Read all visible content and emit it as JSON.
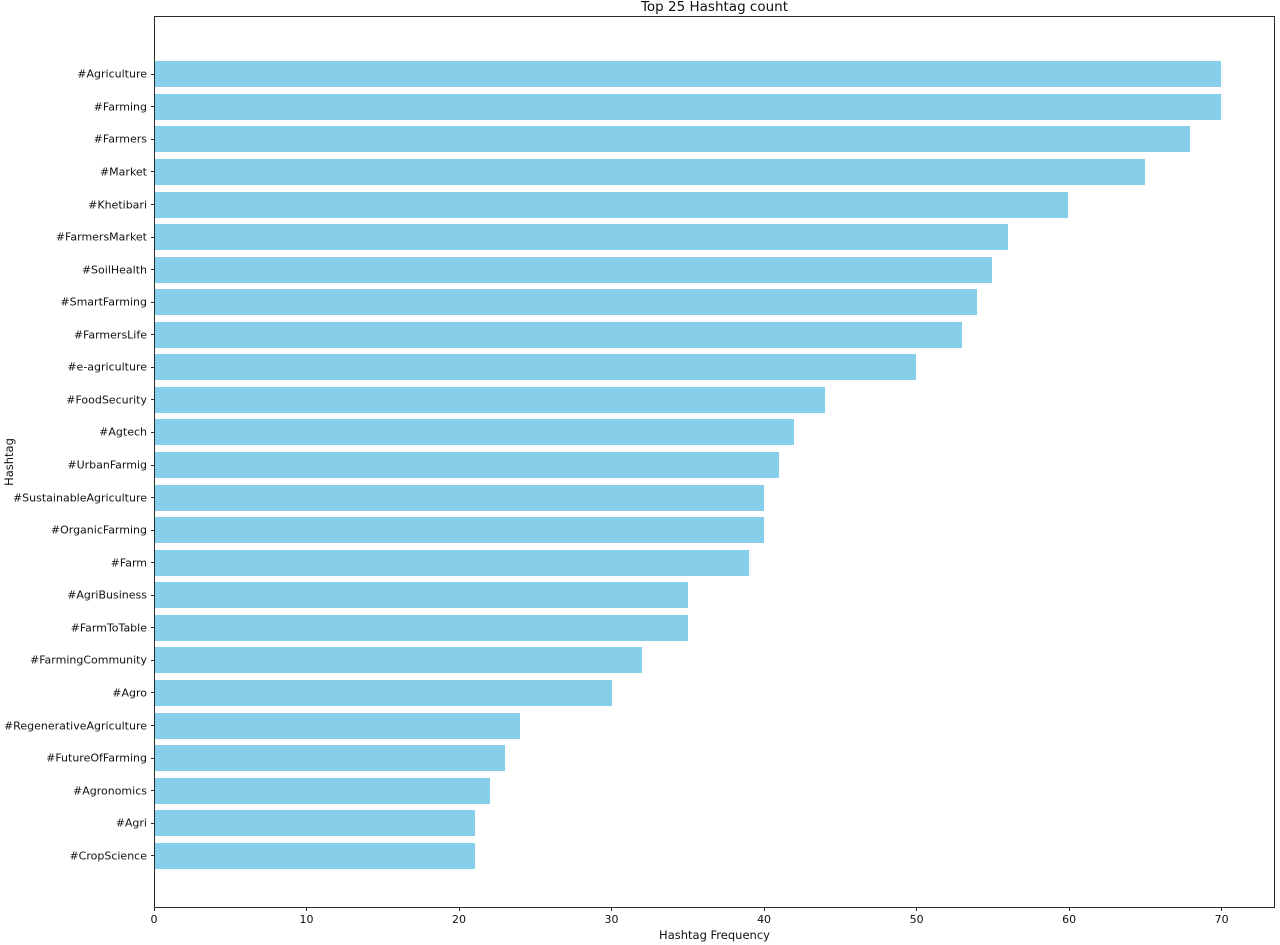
{
  "chart_data": {
    "type": "bar",
    "orientation": "horizontal",
    "title": "Top 25 Hashtag count",
    "xlabel": "Hashtag Frequency",
    "ylabel": "Hashtag",
    "categories": [
      "#Agriculture",
      "#Farming",
      "#Farmers",
      "#Market",
      "#Khetibari",
      "#FarmersMarket",
      "#SoilHealth",
      "#SmartFarming",
      "#FarmersLife",
      "#e-agriculture",
      "#FoodSecurity",
      "#Agtech",
      "#UrbanFarmig",
      "#SustainableAgriculture",
      "#OrganicFarming",
      "#Farm",
      "#AgriBusiness",
      "#FarmToTable",
      "#FarmingCommunity",
      "#Agro",
      "#RegenerativeAgriculture",
      "#FutureOfFarming",
      "#Agronomics",
      "#Agri",
      "#CropScience"
    ],
    "values": [
      70,
      70,
      68,
      65,
      60,
      56,
      55,
      54,
      53,
      50,
      44,
      42,
      41,
      40,
      40,
      39,
      35,
      35,
      32,
      30,
      24,
      23,
      22,
      21,
      21
    ],
    "xticks": [
      0,
      10,
      20,
      30,
      40,
      50,
      60,
      70
    ],
    "xlim": [
      0,
      73.5
    ],
    "grid": false,
    "bar_color": "#87CEEB",
    "axis_color": "#2b2b2b"
  }
}
